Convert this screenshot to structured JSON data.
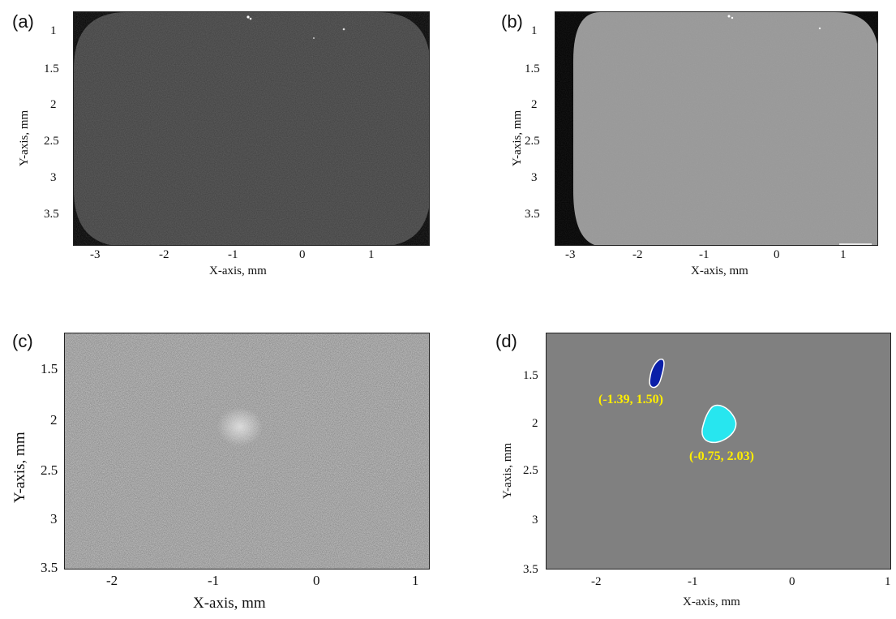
{
  "panels": {
    "a": {
      "label": "(a)",
      "xlabel": "X-axis, mm",
      "ylabel": "Y-axis, mm",
      "xticks": [
        "-3",
        "-2",
        "-1",
        "0",
        "1"
      ],
      "yticks": [
        "1",
        "1.5",
        "2",
        "2.5",
        "3",
        "3.5"
      ]
    },
    "b": {
      "label": "(b)",
      "xlabel": "X-axis, mm",
      "ylabel": "Y-axis, mm",
      "xticks": [
        "-3",
        "-2",
        "-1",
        "0",
        "1"
      ],
      "yticks": [
        "1",
        "1.5",
        "2",
        "2.5",
        "3",
        "3.5"
      ]
    },
    "c": {
      "label": "(c)",
      "xlabel": "X-axis, mm",
      "ylabel": "Y-axis, mm",
      "xticks": [
        "-2",
        "-1",
        "0",
        "1"
      ],
      "yticks": [
        "1.5",
        "2",
        "2.5",
        "3",
        "3.5"
      ]
    },
    "d": {
      "label": "(d)",
      "xlabel": "X-axis, mm",
      "ylabel": "Y-axis, mm",
      "xticks": [
        "-2",
        "-1",
        "0",
        "1"
      ],
      "yticks": [
        "1.5",
        "2",
        "2.5",
        "3",
        "3.5"
      ],
      "blob1_label": "(-1.39, 1.50)",
      "blob2_label": "(-0.75, 2.03)"
    }
  },
  "colors": {
    "background_d": "#808080",
    "blob1": "#0a1fa8",
    "blob2": "#27e6ef",
    "annotation": "#ffee00"
  },
  "chart_data": [
    {
      "type": "heatmap",
      "panel": "a",
      "xlabel": "X-axis, mm",
      "ylabel": "Y-axis, mm",
      "xlim": [
        -3.3,
        1.85
      ],
      "ylim": [
        0.75,
        3.9
      ],
      "colormap": "gray"
    },
    {
      "type": "heatmap",
      "panel": "b",
      "xlabel": "X-axis, mm",
      "ylabel": "Y-axis, mm",
      "xlim": [
        -3.3,
        1.85
      ],
      "ylim": [
        0.75,
        3.9
      ],
      "colormap": "gray"
    },
    {
      "type": "heatmap",
      "panel": "c",
      "xlabel": "X-axis, mm",
      "ylabel": "Y-axis, mm",
      "xlim": [
        -2.45,
        1.1
      ],
      "ylim": [
        1.15,
        3.5
      ],
      "colormap": "gray"
    },
    {
      "type": "scatter",
      "panel": "d",
      "xlabel": "X-axis, mm",
      "ylabel": "Y-axis, mm",
      "xlim": [
        -2.45,
        1.1
      ],
      "ylim": [
        1.15,
        3.5
      ],
      "points": [
        {
          "x": -1.39,
          "y": 1.5,
          "label": "(-1.39, 1.50)"
        },
        {
          "x": -0.75,
          "y": 2.03,
          "label": "(-0.75, 2.03)"
        }
      ]
    }
  ]
}
